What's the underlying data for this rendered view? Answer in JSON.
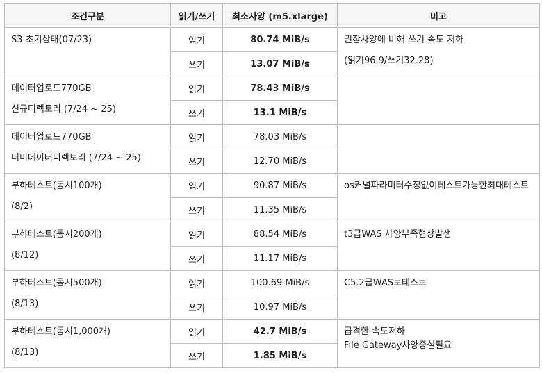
{
  "headers": [
    "조건구분",
    "읽기/쓰기",
    "최소사양 (m5.xlarge)",
    "비고"
  ],
  "rows": [
    {
      "category": [
        "S3 초기상태(07/23)"
      ],
      "read": "읽기",
      "read_speed": "80.74 MiB/s",
      "read_bold": true,
      "write": "쓰기",
      "write_speed": "13.07 MiB/s",
      "write_bold": true,
      "note": [
        "권장사양에 비해 쓰기 속도 저하",
        "(읽기96.9/쓰기32.28)"
      ],
      "note_style": "spaced"
    },
    {
      "category": [
        "데이터업로드770GB",
        "신규디렉토리 (7/24 ~ 25)"
      ],
      "read": "읽기",
      "read_speed": "78.43 MiB/s",
      "read_bold": true,
      "write": "쓰기",
      "write_speed": "13.1 MiB/s",
      "write_bold": true,
      "note": []
    },
    {
      "category": [
        "데이터업로드770GB",
        "더미데이터디렉토리 (7/24 ~ 25)"
      ],
      "read": "읽기",
      "read_speed": "78.03 MiB/s",
      "read_bold": false,
      "write": "쓰기",
      "write_speed": "12.70 MiB/s",
      "write_bold": false,
      "note": []
    },
    {
      "category": [
        "부하테스트(동시100개)",
        "(8/2)"
      ],
      "read": "읽기",
      "read_speed": "90.87 MiB/s",
      "read_bold": false,
      "write": "쓰기",
      "write_speed": "11.35 MiB/s",
      "write_bold": false,
      "note": [
        "os커널파라미터수정없이테스트가능한최대테스트"
      ]
    },
    {
      "category": [
        "부하테스트(동시200개)",
        "(8/12)"
      ],
      "read": "읽기",
      "read_speed": "88.54 MiB/s",
      "read_bold": false,
      "write": "쓰기",
      "write_speed": "11.17 MiB/s",
      "write_bold": false,
      "note": [
        "t3급WAS 사양부족현상발생"
      ]
    },
    {
      "category": [
        "부하테스트(동시500개)",
        "(8/13)"
      ],
      "read": "읽기",
      "read_speed": "100.69 MiB/s",
      "read_bold": false,
      "write": "쓰기",
      "write_speed": "10.97 MiB/s",
      "write_bold": false,
      "note": [
        "C5.2급WAS로테스트"
      ]
    },
    {
      "category": [
        "부하테스트(동시1,000개)",
        "(8/13)"
      ],
      "read": "읽기",
      "read_speed": "42.7 MiB/s",
      "read_bold": true,
      "write": "쓰기",
      "write_speed": "1.85 MiB/s",
      "write_bold": true,
      "note": [
        "급격한 속도저하",
        "File Gateway사양증설필요"
      ],
      "note_style": "tight"
    }
  ]
}
